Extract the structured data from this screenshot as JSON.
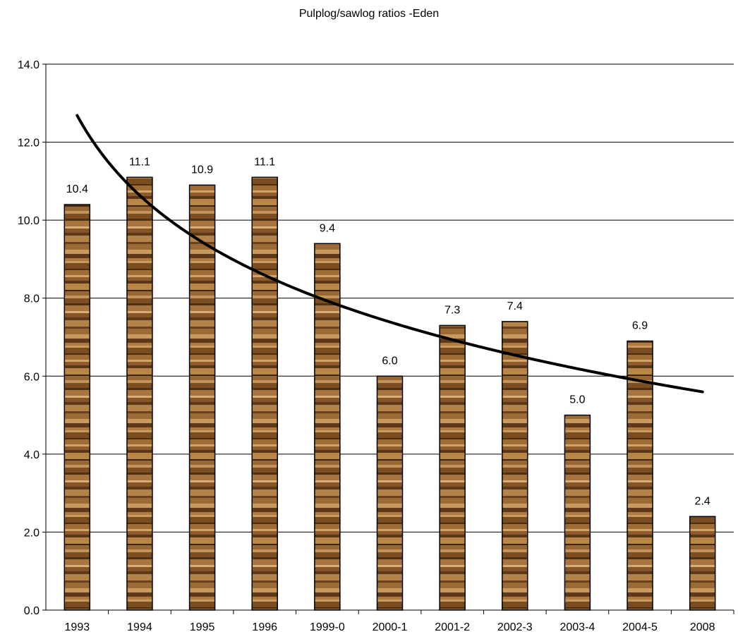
{
  "chart_data": {
    "type": "bar",
    "title": "Pulplog/sawlog ratios -Eden",
    "xlabel": "",
    "ylabel": "",
    "categories": [
      "1993",
      "1994",
      "1995",
      "1996",
      "1999-0",
      "2000-1",
      "2001-2",
      "2002-3",
      "2003-4",
      "2004-5",
      "2008"
    ],
    "series": [
      {
        "values": [
          10.4,
          11.1,
          10.9,
          11.1,
          9.4,
          6.0,
          7.3,
          7.4,
          5.0,
          6.9,
          2.4
        ],
        "data_labels": [
          "10.4",
          "11.1",
          "10.9",
          "11.1",
          "9.4",
          "6.0",
          "7.3",
          "7.4",
          "5.0",
          "6.9",
          "2.4"
        ]
      }
    ],
    "trendline": {
      "type": "logarithmic",
      "x": [
        "1993",
        "1994",
        "1995",
        "1996",
        "1999-0",
        "2000-1",
        "2001-2",
        "2002-3",
        "2003-4",
        "2004-5",
        "2008"
      ],
      "values": [
        12.8,
        10.5,
        9.4,
        8.6,
        7.9,
        7.4,
        6.9,
        6.6,
        6.2,
        5.9,
        5.6
      ],
      "color": "#000000"
    },
    "ylim": [
      0,
      14
    ],
    "yticks": [
      "0.0",
      "2.0",
      "4.0",
      "6.0",
      "8.0",
      "10.0",
      "12.0",
      "14.0"
    ],
    "ytick_values": [
      0,
      2,
      4,
      6,
      8,
      10,
      12,
      14
    ],
    "grid": true,
    "bar_fill": "wood-grain texture",
    "colors": {
      "wood_dark": "#4a2e14",
      "wood_mid": "#8a5a2b",
      "wood_light": "#c99a5e",
      "gridline": "#000000",
      "bar_outline": "#000000"
    }
  }
}
